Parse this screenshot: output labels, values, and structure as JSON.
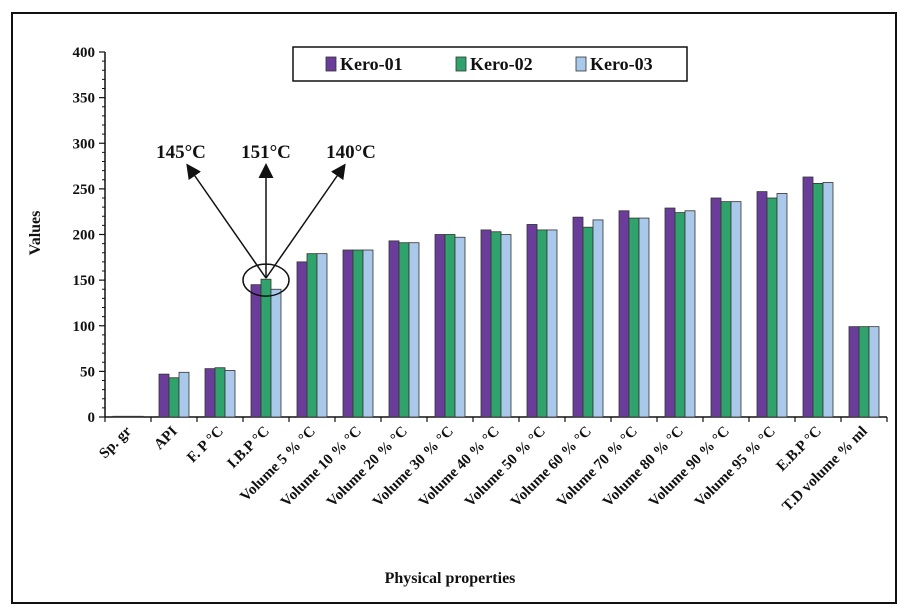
{
  "chart_data": {
    "type": "bar",
    "xlabel": "Physical properties",
    "ylabel": "Values",
    "ylim": [
      0,
      400
    ],
    "yticks": [
      0,
      50,
      100,
      150,
      200,
      250,
      300,
      350,
      400
    ],
    "legend_position": "top-center",
    "grid": false,
    "categories": [
      "Sp. gr",
      "API",
      "F. P °C",
      "I.B.P °C",
      "Volume 5 % °C",
      "Volume 10 % °C",
      "Volume 20 % °C",
      "Volume 30 % °C",
      "Volume 40 % °C",
      "Volume 50 % °C",
      "Volume 60 % °C",
      "Volume 70 % °C",
      "Volume 80 % °C",
      "Volume 90 % °C",
      "Volume 95 % °C",
      "E.B.P °C",
      "T.D volume % ml"
    ],
    "series": [
      {
        "name": "Kero-01",
        "color": "#6a3d9a",
        "values": [
          0.8,
          47,
          53,
          145,
          170,
          183,
          193,
          200,
          205,
          211,
          219,
          226,
          229,
          240,
          247,
          263,
          99
        ]
      },
      {
        "name": "Kero-02",
        "color": "#2fa36b",
        "values": [
          0.8,
          43,
          54,
          151,
          179,
          183,
          191,
          200,
          203,
          205,
          208,
          218,
          224,
          236,
          240,
          256,
          99
        ]
      },
      {
        "name": "Kero-03",
        "color": "#a9c8ea",
        "values": [
          0.8,
          49,
          51,
          140,
          179,
          183,
          191,
          197,
          200,
          205,
          216,
          218,
          226,
          236,
          245,
          257,
          99
        ]
      }
    ],
    "annotations": [
      {
        "text": "145°C"
      },
      {
        "text": "151°C"
      },
      {
        "text": "140°C"
      }
    ]
  }
}
